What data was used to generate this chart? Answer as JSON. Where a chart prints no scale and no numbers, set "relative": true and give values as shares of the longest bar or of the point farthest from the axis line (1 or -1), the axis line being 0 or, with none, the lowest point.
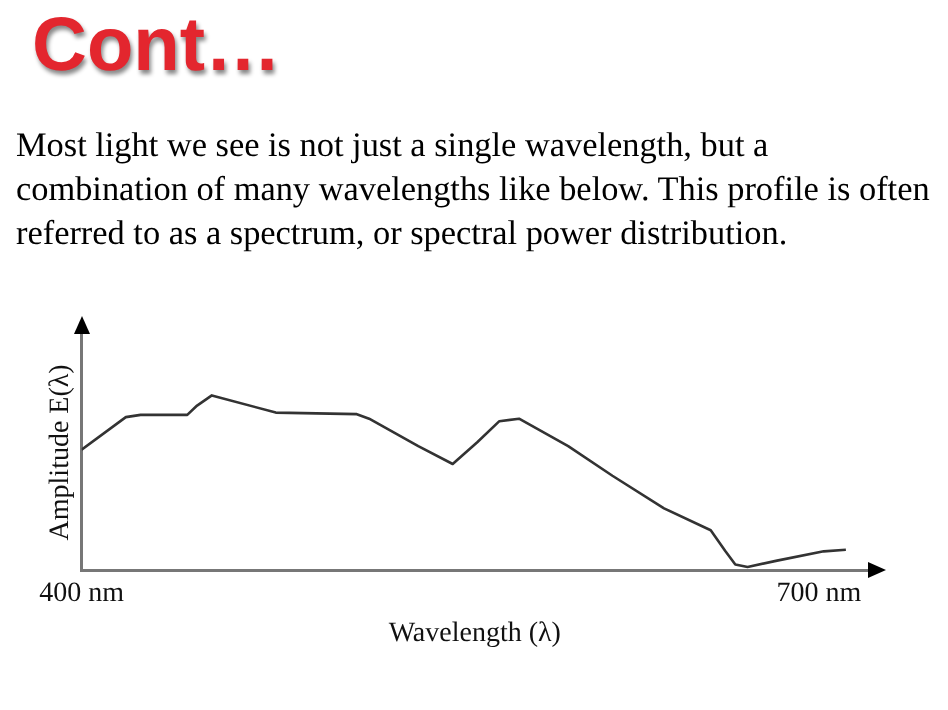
{
  "chart_data": {
    "type": "line",
    "title": "Cont…",
    "subtitle": "Most light we see is not just a single wavelength, but a combination of many wavelengths like below. This profile is often referred to as a spectrum, or spectral power distribution.",
    "xlabel": "Wavelength (λ)",
    "ylabel": "Amplitude E(λ)",
    "relative": true,
    "xlim": [
      400,
      720
    ],
    "xticks": [
      {
        "value": 400,
        "label": "400 nm"
      },
      {
        "value": 700,
        "label": "700 nm"
      }
    ],
    "x": [
      400,
      418,
      424,
      443,
      447,
      453,
      479,
      512,
      517,
      537,
      551,
      561,
      570,
      578,
      598,
      616,
      637,
      656,
      662,
      666,
      671,
      683,
      702,
      711
    ],
    "series": [
      {
        "color": "#333333",
        "values": [
          0.69,
          0.876,
          0.889,
          0.889,
          0.942,
          1.0,
          0.902,
          0.893,
          0.867,
          0.711,
          0.609,
          0.733,
          0.853,
          0.867,
          0.711,
          0.542,
          0.356,
          0.231,
          0.111,
          0.036,
          0.022,
          0.058,
          0.111,
          0.12
        ]
      }
    ]
  }
}
